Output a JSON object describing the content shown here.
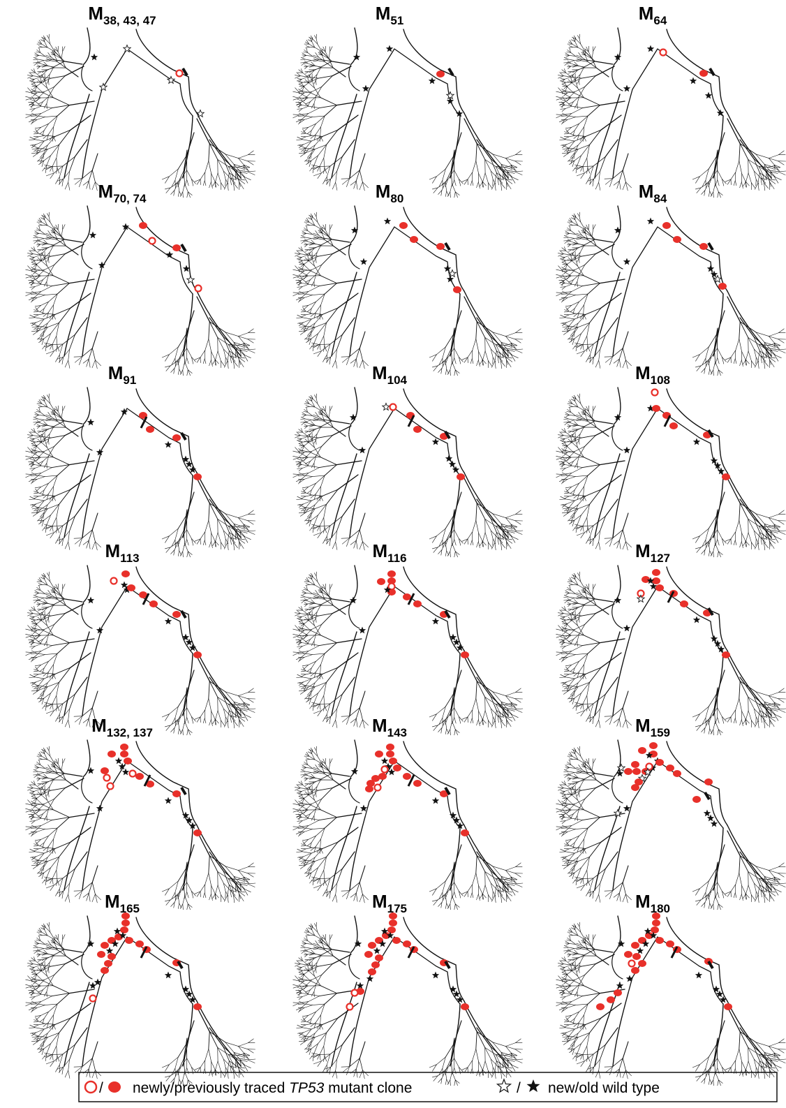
{
  "panels": [
    {
      "label": "M",
      "sub": "38, 43, 47"
    },
    {
      "label": "M",
      "sub": "51"
    },
    {
      "label": "M",
      "sub": "64"
    },
    {
      "label": "M",
      "sub": "70, 74"
    },
    {
      "label": "M",
      "sub": "80"
    },
    {
      "label": "M",
      "sub": "84"
    },
    {
      "label": "M",
      "sub": "91"
    },
    {
      "label": "M",
      "sub": "104"
    },
    {
      "label": "M",
      "sub": "108"
    },
    {
      "label": "M",
      "sub": "113"
    },
    {
      "label": "M",
      "sub": "116"
    },
    {
      "label": "M",
      "sub": "127"
    },
    {
      "label": "M",
      "sub": "132, 137"
    },
    {
      "label": "M",
      "sub": "143"
    },
    {
      "label": "M",
      "sub": "159"
    },
    {
      "label": "M",
      "sub": "165"
    },
    {
      "label": "M",
      "sub": "175"
    },
    {
      "label": "M",
      "sub": "180"
    }
  ],
  "legend": {
    "mutant_separator": "/",
    "mutant_text_before": "newly/previously traced ",
    "mutant_gene": "TP53",
    "mutant_text_after": " mutant clone",
    "wild_separator": "/",
    "wild_text": "new/old wild type"
  }
}
